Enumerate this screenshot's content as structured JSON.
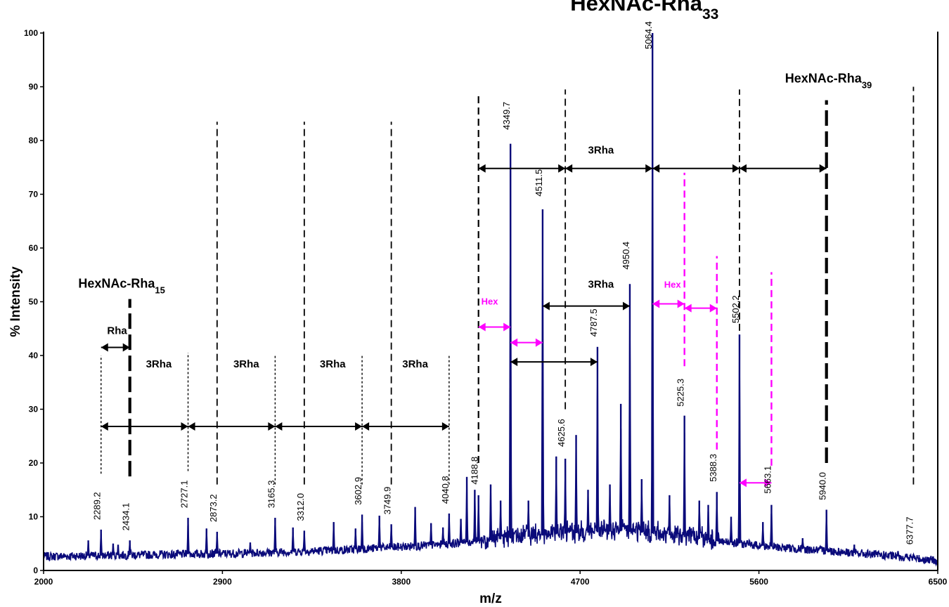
{
  "chart_data": {
    "type": "line",
    "xlabel": "m/z",
    "ylabel": "% Intensity",
    "xlim": [
      2000,
      6500
    ],
    "ylim": [
      0,
      100
    ],
    "x_ticks": [
      2000,
      2900,
      3800,
      4700,
      5600,
      6500
    ],
    "y_ticks": [
      0,
      10,
      20,
      30,
      40,
      50,
      60,
      70,
      80,
      90,
      100
    ],
    "line_color": "#0a0a7a",
    "baseline": [
      {
        "x": 2000,
        "y": 2.6
      },
      {
        "x": 2500,
        "y": 2.9
      },
      {
        "x": 3000,
        "y": 3.2
      },
      {
        "x": 3500,
        "y": 3.8
      },
      {
        "x": 4000,
        "y": 4.8
      },
      {
        "x": 4300,
        "y": 5.8
      },
      {
        "x": 4600,
        "y": 6.8
      },
      {
        "x": 4900,
        "y": 7.3
      },
      {
        "x": 5100,
        "y": 6.8
      },
      {
        "x": 5400,
        "y": 5.4
      },
      {
        "x": 5700,
        "y": 4.3
      },
      {
        "x": 6000,
        "y": 3.5
      },
      {
        "x": 6300,
        "y": 2.6
      },
      {
        "x": 6500,
        "y": 1.8
      }
    ],
    "peaks": [
      {
        "x": 2289.2,
        "y": 7.6,
        "label": "2289.2"
      },
      {
        "x": 2434.1,
        "y": 5.6,
        "label": "2434.1"
      },
      {
        "x": 2727.1,
        "y": 9.8,
        "label": "2727.1"
      },
      {
        "x": 2873.2,
        "y": 7.2,
        "label": "2873.2"
      },
      {
        "x": 3165.3,
        "y": 9.8,
        "label": "3165.3"
      },
      {
        "x": 3312.0,
        "y": 7.4,
        "label": "3312.0"
      },
      {
        "x": 3602.9,
        "y": 10.4,
        "label": "3602.9"
      },
      {
        "x": 3749.9,
        "y": 8.6,
        "label": "3749.9"
      },
      {
        "x": 4040.8,
        "y": 10.6,
        "label": "4040.8"
      },
      {
        "x": 4188.8,
        "y": 14.0,
        "label": "4188.8"
      },
      {
        "x": 4349.7,
        "y": 79.4,
        "label": "4349.7"
      },
      {
        "x": 4511.5,
        "y": 67.2,
        "label": "4511.5"
      },
      {
        "x": 4625.6,
        "y": 20.8,
        "label": "4625.6"
      },
      {
        "x": 4787.5,
        "y": 41.6,
        "label": "4787.5"
      },
      {
        "x": 4950.4,
        "y": 53.3,
        "label": "4950.4"
      },
      {
        "x": 5064.4,
        "y": 100,
        "label": "5064.4"
      },
      {
        "x": 5225.3,
        "y": 28.8,
        "label": "5225.3"
      },
      {
        "x": 5388.3,
        "y": 14.6,
        "label": "5388.3"
      },
      {
        "x": 5502.2,
        "y": 43.9,
        "label": "5502.2"
      },
      {
        "x": 5663.1,
        "y": 12.2,
        "label": "5663.1"
      },
      {
        "x": 5940.0,
        "y": 11.3,
        "label": "5940.0"
      },
      {
        "x": 6377.7,
        "y": 3.0,
        "label": "6377.7"
      }
    ],
    "minor_peaks": [
      {
        "x": 2225,
        "y": 5.6
      },
      {
        "x": 2350,
        "y": 5.0
      },
      {
        "x": 2375,
        "y": 4.8
      },
      {
        "x": 2820,
        "y": 7.8
      },
      {
        "x": 3040,
        "y": 5.2
      },
      {
        "x": 3255,
        "y": 8.0
      },
      {
        "x": 3460,
        "y": 9.0
      },
      {
        "x": 3570,
        "y": 7.8
      },
      {
        "x": 3690,
        "y": 10.2
      },
      {
        "x": 3870,
        "y": 11.8
      },
      {
        "x": 3950,
        "y": 8.8
      },
      {
        "x": 4010,
        "y": 8.0
      },
      {
        "x": 4100,
        "y": 9.6
      },
      {
        "x": 4130,
        "y": 17.4
      },
      {
        "x": 4170,
        "y": 15.0
      },
      {
        "x": 4250,
        "y": 16.0
      },
      {
        "x": 4300,
        "y": 13.0
      },
      {
        "x": 4440,
        "y": 13.0
      },
      {
        "x": 4580,
        "y": 21.2
      },
      {
        "x": 4680,
        "y": 25.2
      },
      {
        "x": 4740,
        "y": 15.0
      },
      {
        "x": 4850,
        "y": 16.0
      },
      {
        "x": 4905,
        "y": 31.0
      },
      {
        "x": 5010,
        "y": 17.0
      },
      {
        "x": 5150,
        "y": 14.0
      },
      {
        "x": 5300,
        "y": 13.0
      },
      {
        "x": 5345,
        "y": 12.2
      },
      {
        "x": 5460,
        "y": 10.0
      },
      {
        "x": 5620,
        "y": 9.0
      },
      {
        "x": 5820,
        "y": 6.0
      },
      {
        "x": 6080,
        "y": 4.8
      },
      {
        "x": 6300,
        "y": 3.6
      }
    ],
    "annotations": {
      "titles": [
        {
          "text": "HexNAc-Rha",
          "sub": "33",
          "x": 5024,
          "y": 104.2,
          "size": "big"
        },
        {
          "text": "HexNAc-Rha",
          "sub": "39",
          "x": 5950,
          "y": 90.8,
          "size": "mid"
        },
        {
          "text": "HexNAc-Rha",
          "sub": "15",
          "x": 2393,
          "y": 52.6,
          "size": "mid"
        }
      ],
      "labels": [
        {
          "text": "Rha",
          "x": 2370,
          "y": 44.0
        },
        {
          "text": "3Rha",
          "x": 2580,
          "y": 37.8
        },
        {
          "text": "3Rha",
          "x": 3020,
          "y": 37.8
        },
        {
          "text": "3Rha",
          "x": 3455,
          "y": 37.8
        },
        {
          "text": "3Rha",
          "x": 3870,
          "y": 37.8
        },
        {
          "text": "3Rha",
          "x": 4805,
          "y": 77.6
        },
        {
          "text": "3Rha",
          "x": 4805,
          "y": 52.6
        }
      ],
      "hex_labels": [
        {
          "text": "Hex",
          "x": 4245,
          "y": 49.5
        },
        {
          "text": "Hex",
          "x": 5165,
          "y": 52.6
        }
      ]
    }
  }
}
